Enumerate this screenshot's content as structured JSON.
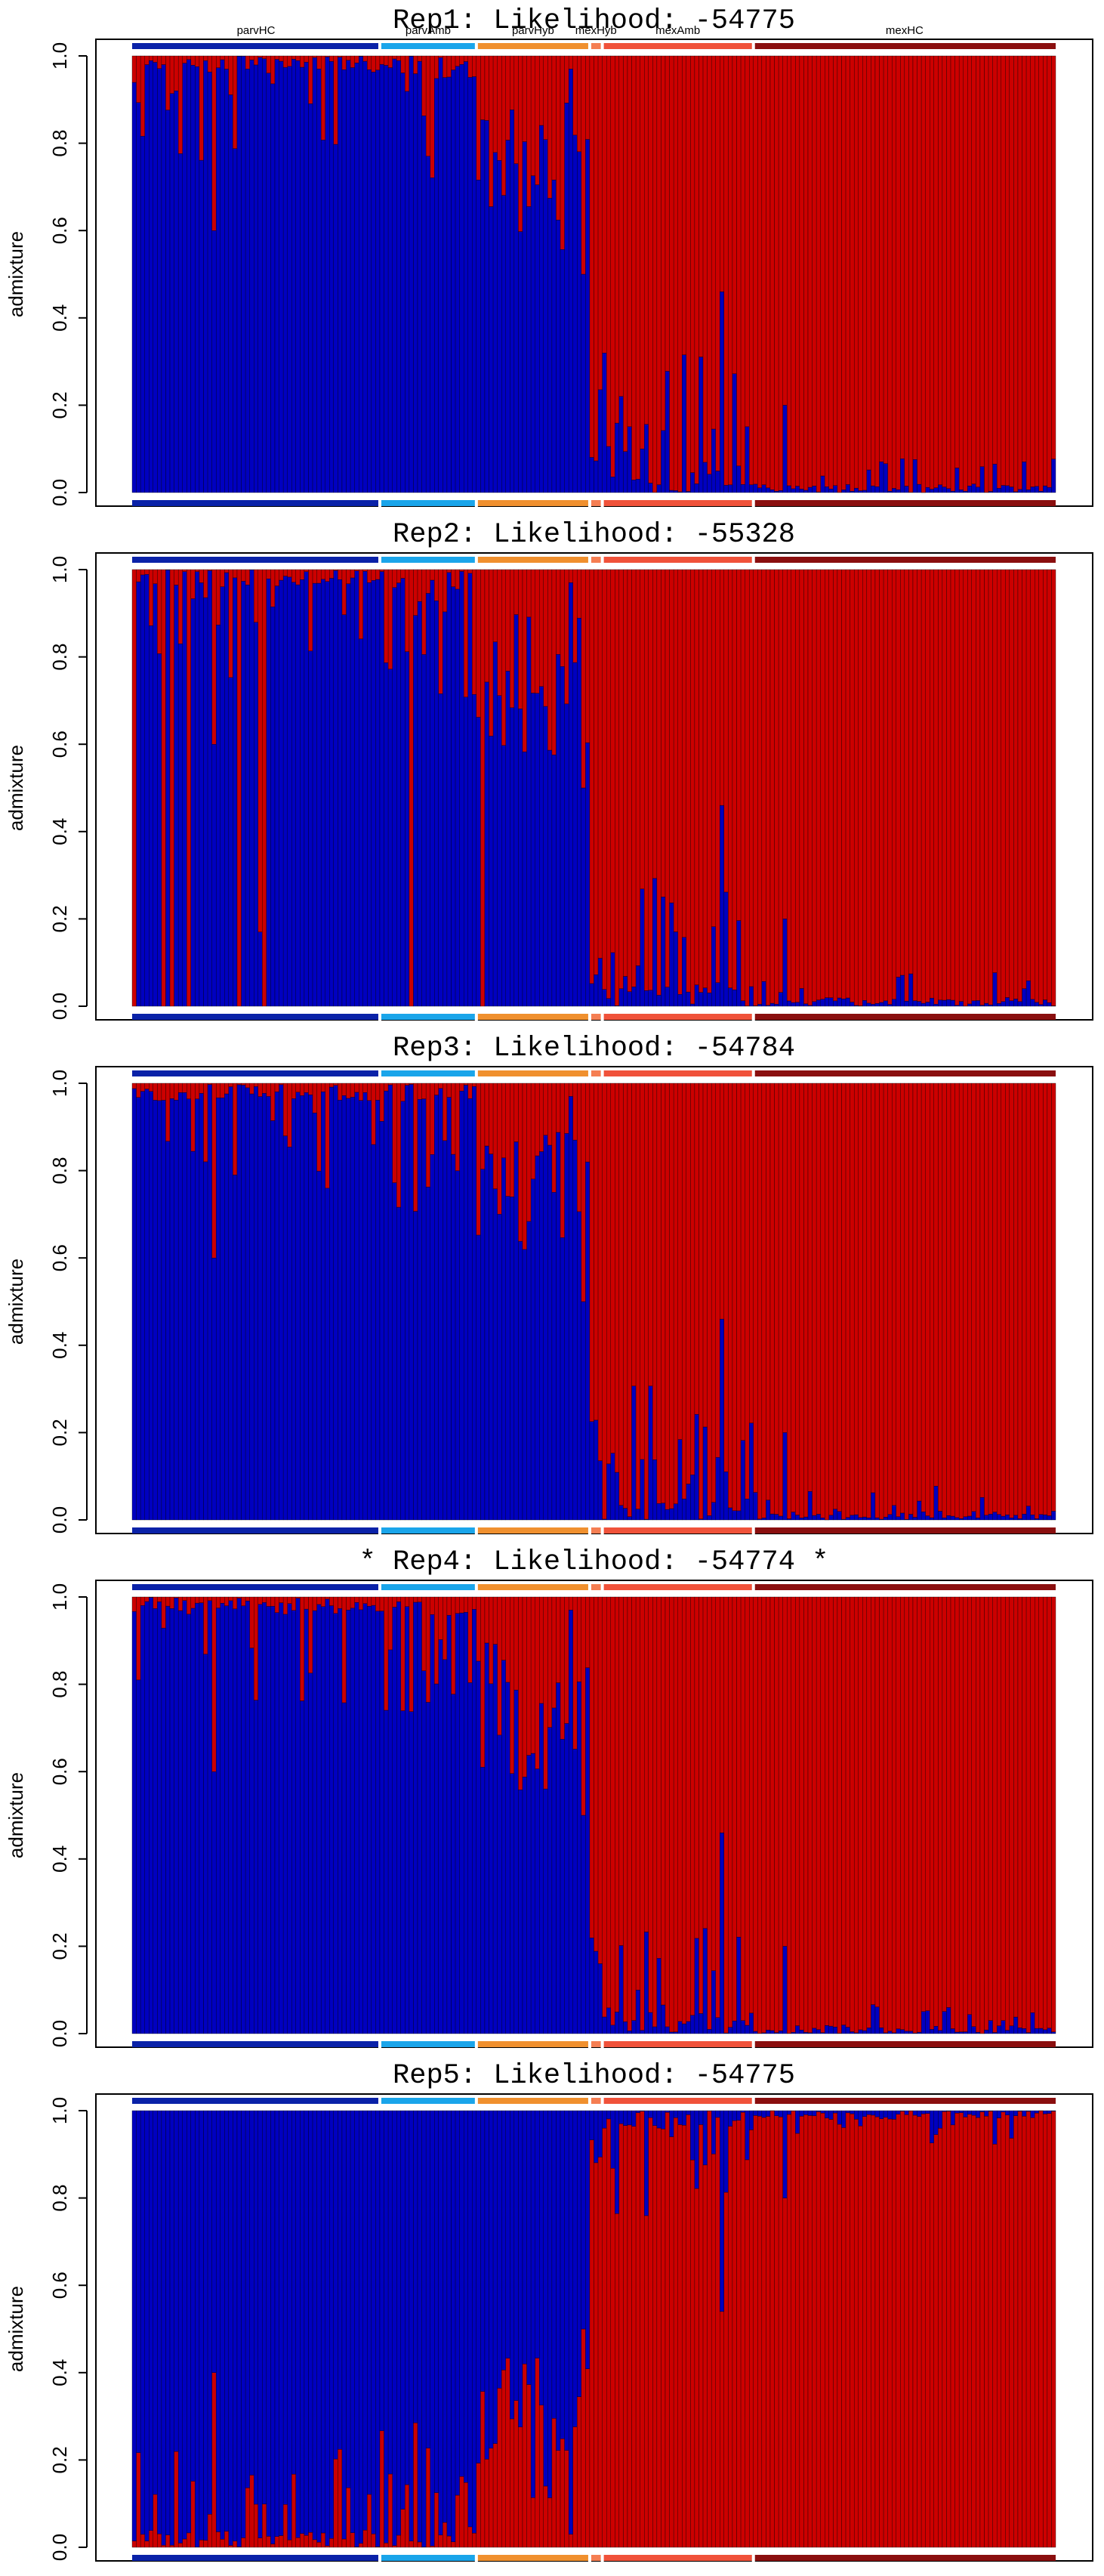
{
  "chart_data": {
    "type": "bar",
    "stacked": true,
    "y_label": "admixture",
    "ylim": [
      0,
      1
    ],
    "y_ticks": [
      "0.0",
      "0.2",
      "0.4",
      "0.6",
      "0.8",
      "1.0"
    ],
    "n_individuals": 220,
    "colors": {
      "blue": "#0000c0",
      "red": "#cc0000"
    },
    "group_colors": [
      "#0a22a8",
      "#1aa5ea",
      "#f0902e",
      "#f57e52",
      "#f0523a",
      "#8a0f0f"
    ],
    "groups": [
      {
        "label": "parvHC",
        "count": 59
      },
      {
        "label": "parvAmb",
        "count": 23
      },
      {
        "label": "parvHyb",
        "count": 27
      },
      {
        "label": "mexHyb",
        "count": 3
      },
      {
        "label": "mexAmb",
        "count": 36
      },
      {
        "label": "mexHC",
        "count": 72
      }
    ],
    "panels": [
      {
        "title": "Rep1: Likelihood: -54775",
        "show_group_labels": true,
        "blue_bottom": true
      },
      {
        "title": "Rep2: Likelihood: -55328",
        "show_group_labels": false,
        "blue_bottom": true
      },
      {
        "title": "Rep3: Likelihood: -54784",
        "show_group_labels": false,
        "blue_bottom": true
      },
      {
        "title": "* Rep4: Likelihood: -54774 *",
        "show_group_labels": false,
        "blue_bottom": true
      },
      {
        "title": "Rep5: Likelihood: -54775",
        "show_group_labels": false,
        "blue_bottom": false
      }
    ]
  }
}
